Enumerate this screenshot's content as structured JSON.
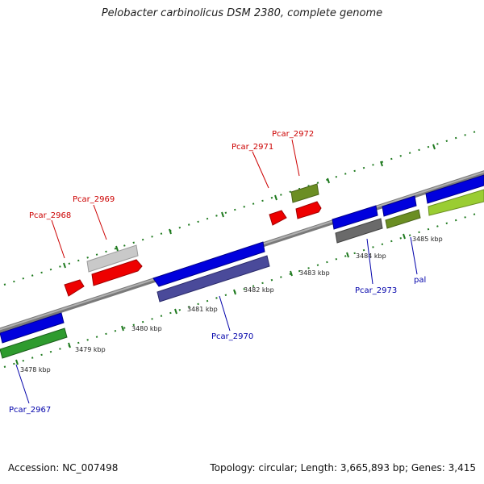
{
  "title": "Pelobacter carbinolicus DSM 2380, complete genome",
  "footer": {
    "accession": "Accession: NC_007498",
    "summary": "Topology: circular; Length: 3,665,893 bp; Genes: 3,415"
  },
  "colors": {
    "backbone": "#8c8c8c",
    "ruler": "#1f7a1f",
    "forward_label": "#cc0000",
    "reverse_label": "#0000aa"
  },
  "scale": {
    "unit": "kbp",
    "ticks": [
      {
        "label": "3478 kbp"
      },
      {
        "label": "3479 kbp"
      },
      {
        "label": "3480 kbp"
      },
      {
        "label": "3481 kbp"
      },
      {
        "label": "3482 kbp"
      },
      {
        "label": "3483 kbp"
      },
      {
        "label": "3484 kbp"
      },
      {
        "label": "3485 kbp"
      }
    ]
  },
  "gene_labels": [
    {
      "text": "Pcar_2967",
      "strand": "reverse"
    },
    {
      "text": "Pcar_2968",
      "strand": "forward"
    },
    {
      "text": "Pcar_2969",
      "strand": "forward"
    },
    {
      "text": "Pcar_2970",
      "strand": "reverse"
    },
    {
      "text": "Pcar_2971",
      "strand": "forward"
    },
    {
      "text": "Pcar_2972",
      "strand": "forward"
    },
    {
      "text": "Pcar_2973",
      "strand": "reverse"
    },
    {
      "text": "pal",
      "strand": "reverse"
    }
  ]
}
